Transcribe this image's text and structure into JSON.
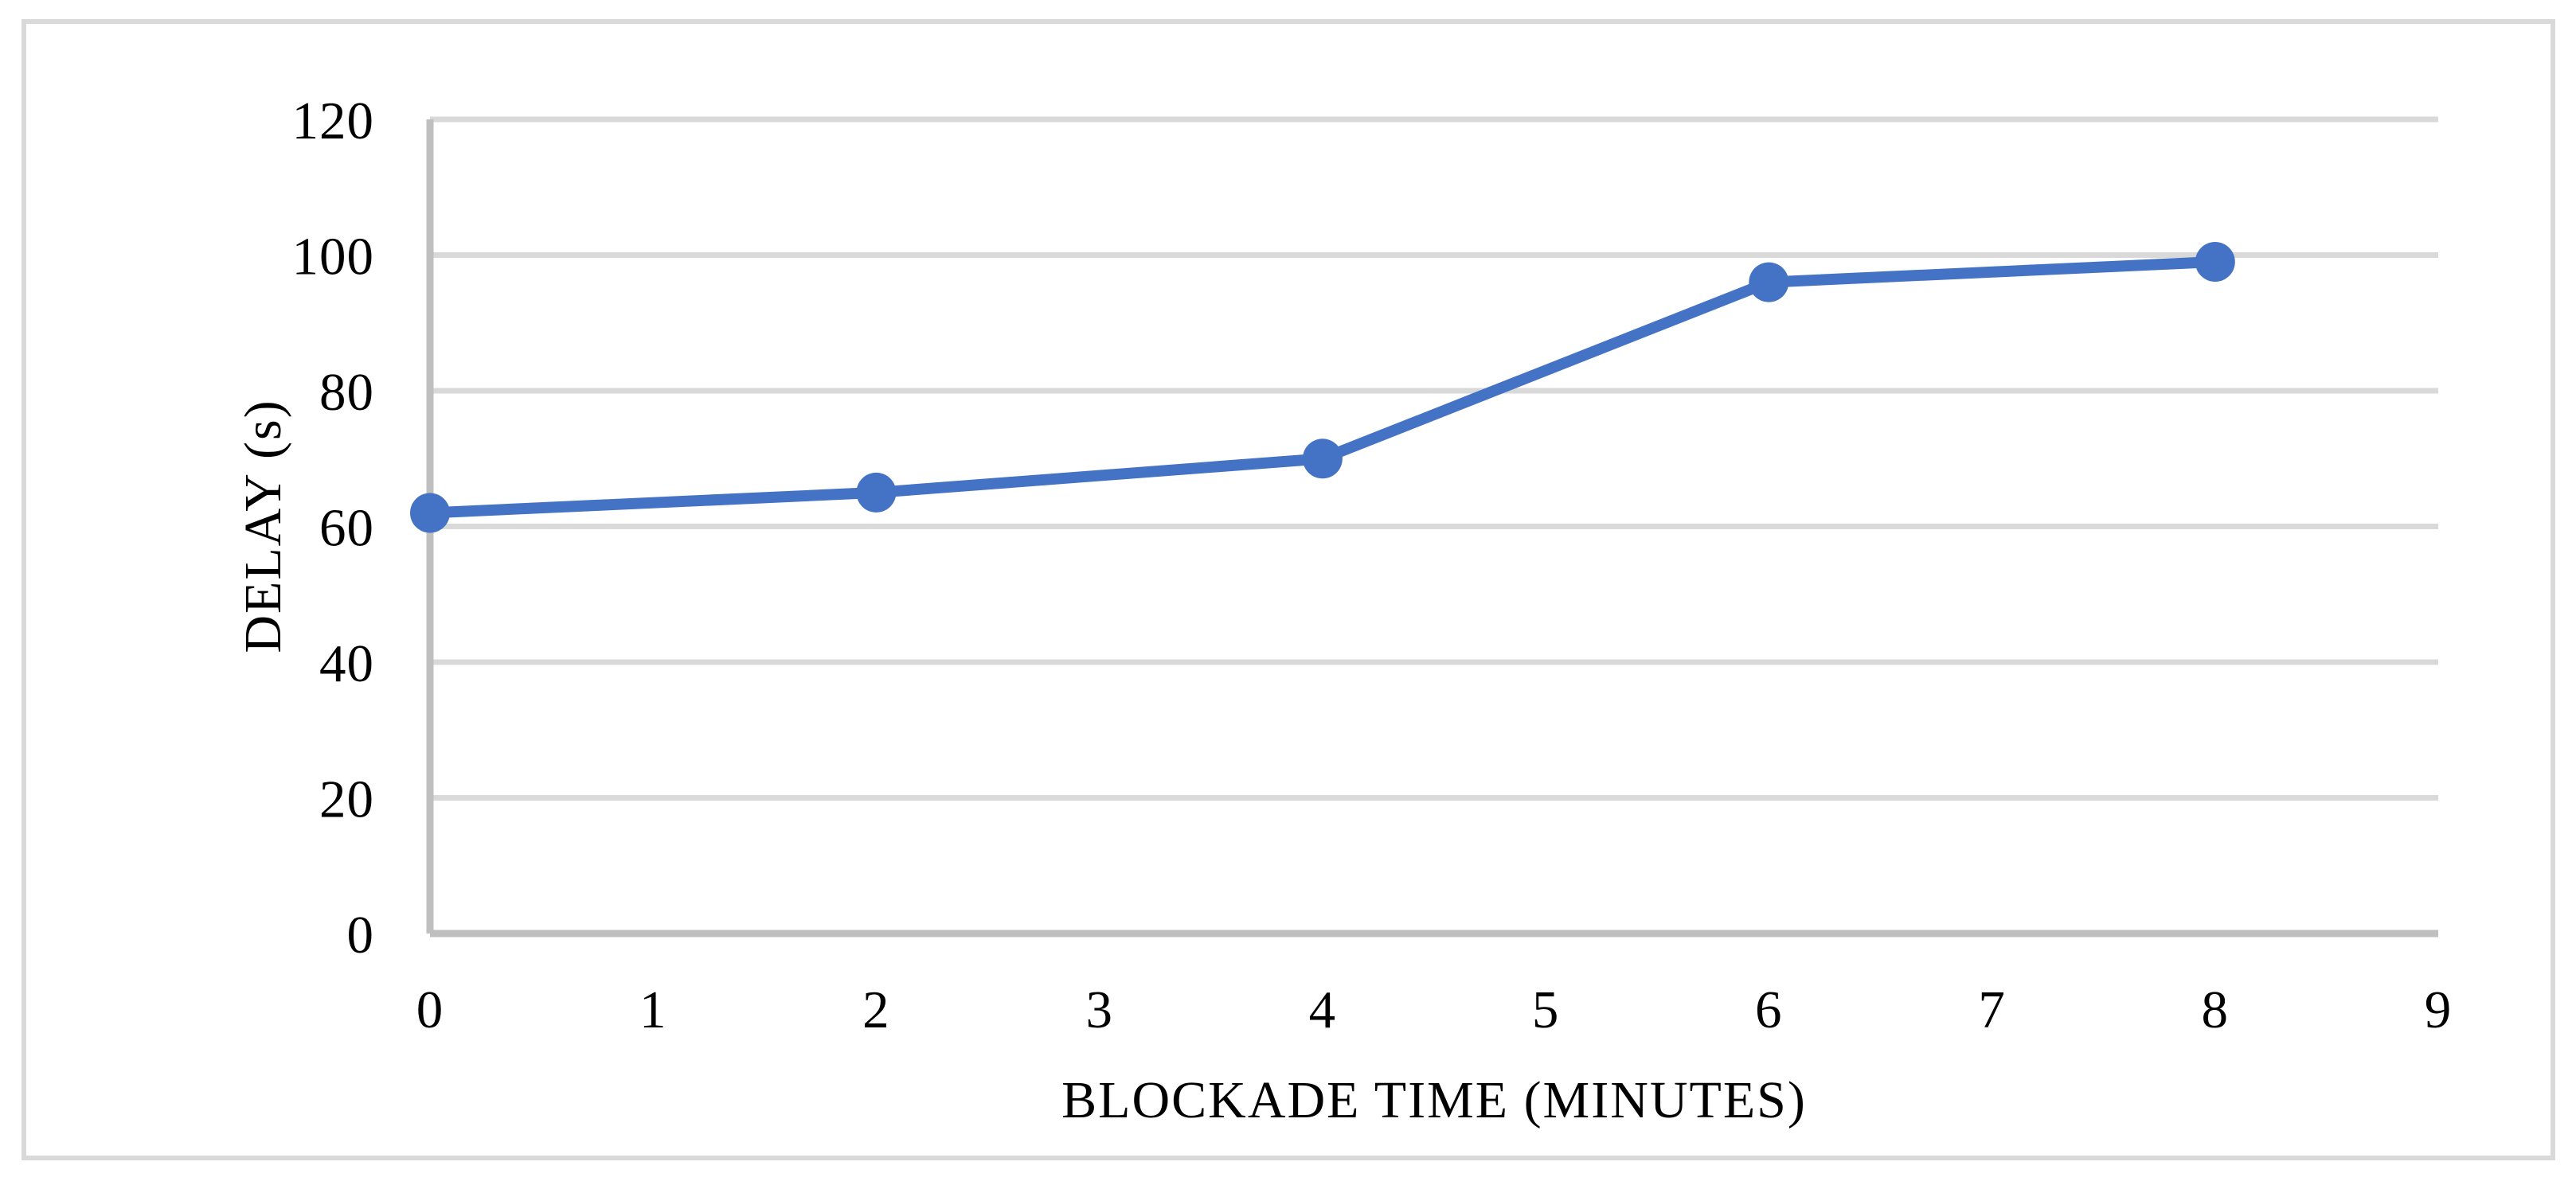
{
  "chart_data": {
    "type": "line",
    "title": "",
    "xlabel": "BLOCKADE TIME (MINUTES)",
    "ylabel": "DELAY (s)",
    "x": [
      0,
      2,
      4,
      6,
      8
    ],
    "values": [
      62,
      65,
      70,
      96,
      99
    ],
    "x_ticks": [
      "0",
      "1",
      "2",
      "3",
      "4",
      "5",
      "6",
      "7",
      "8",
      "9"
    ],
    "y_ticks": [
      "0",
      "20",
      "40",
      "60",
      "80",
      "100",
      "120"
    ],
    "y_tick_values": [
      0,
      20,
      40,
      60,
      80,
      100,
      120
    ],
    "x_tick_values": [
      0,
      1,
      2,
      3,
      4,
      5,
      6,
      7,
      8,
      9
    ],
    "xlim": [
      0,
      9
    ],
    "ylim": [
      0,
      120
    ],
    "grid": true,
    "legend_position": "none",
    "line_color": "#4472C4",
    "marker": "circle"
  },
  "colors": {
    "accent": "#4472C4",
    "gridline": "#D9D9D9",
    "axis_line": "#BFBFBF",
    "figure_border": "#D9D9D9",
    "text": "#000000",
    "background": "#FFFFFF"
  }
}
